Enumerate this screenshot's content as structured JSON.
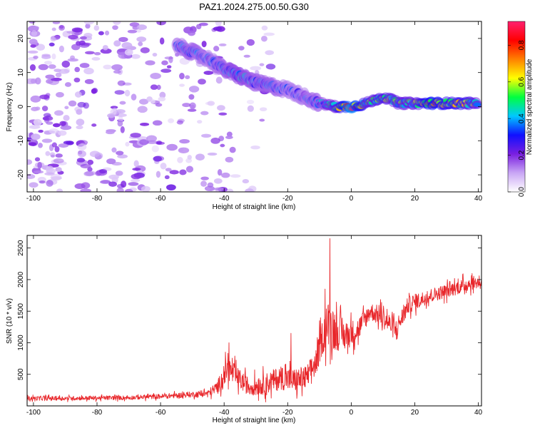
{
  "title": "PAZ1.2024.275.00.50.G30",
  "chart_data": [
    {
      "type": "heatmap",
      "xlabel": "Height of straight line (km)",
      "ylabel": "Frequency (Hz)",
      "xlim": [
        -102,
        41
      ],
      "ylim": [
        -25,
        25
      ],
      "x_ticks": [
        -100,
        -80,
        -60,
        -40,
        -20,
        0,
        20,
        40
      ],
      "y_ticks": [
        -20,
        -10,
        0,
        10,
        20
      ],
      "colorbar": {
        "label": "Normalized spectral amplitude",
        "range": [
          0,
          0.93
        ],
        "ticks": [
          0.0,
          0.2,
          0.4,
          0.6,
          0.8
        ],
        "colors": [
          "#ffffff",
          "#c9a6f5",
          "#7a1fe0",
          "#1010ff",
          "#00c8ff",
          "#00ff40",
          "#ffff00",
          "#ff8000",
          "#ff0000",
          "#ff2070"
        ]
      },
      "signal_trace": [
        {
          "x": -55,
          "y": 18,
          "amp": 0.3
        },
        {
          "x": -50,
          "y": 16,
          "amp": 0.35
        },
        {
          "x": -45,
          "y": 14,
          "amp": 0.3
        },
        {
          "x": -40,
          "y": 11,
          "amp": 0.35
        },
        {
          "x": -35,
          "y": 9,
          "amp": 0.4
        },
        {
          "x": -30,
          "y": 7,
          "amp": 0.35
        },
        {
          "x": -25,
          "y": 6,
          "amp": 0.35
        },
        {
          "x": -20,
          "y": 5,
          "amp": 0.3
        },
        {
          "x": -15,
          "y": 3,
          "amp": 0.3
        },
        {
          "x": -10,
          "y": 1,
          "amp": 0.35
        },
        {
          "x": -5,
          "y": 0,
          "amp": 0.5
        },
        {
          "x": 0,
          "y": 0,
          "amp": 0.85
        },
        {
          "x": 5,
          "y": 1,
          "amp": 0.5
        },
        {
          "x": 10,
          "y": 3,
          "amp": 0.55
        },
        {
          "x": 15,
          "y": 1,
          "amp": 0.5
        },
        {
          "x": 20,
          "y": 1,
          "amp": 0.5
        },
        {
          "x": 25,
          "y": 1,
          "amp": 0.7
        },
        {
          "x": 30,
          "y": 1,
          "amp": 0.6
        },
        {
          "x": 35,
          "y": 1,
          "amp": 0.6
        },
        {
          "x": 40,
          "y": 1,
          "amp": 0.5
        }
      ],
      "background_noise": {
        "x_range": [
          -102,
          -25
        ],
        "y_range": [
          -25,
          25
        ],
        "amp": 0.15
      }
    },
    {
      "type": "line",
      "xlabel": "Height of straight line (km)",
      "ylabel": "SNR (10 * v/v)",
      "xlim": [
        -102,
        41
      ],
      "ylim": [
        0,
        2700
      ],
      "x_ticks": [
        -100,
        -80,
        -60,
        -40,
        -20,
        0,
        20,
        40
      ],
      "y_ticks": [
        500,
        1000,
        1500,
        2000,
        2500
      ],
      "series": [
        {
          "color": "#e8262a",
          "envelope": [
            {
              "x": -102,
              "mean": 120,
              "spread": 60
            },
            {
              "x": -90,
              "mean": 120,
              "spread": 60
            },
            {
              "x": -80,
              "mean": 125,
              "spread": 60
            },
            {
              "x": -70,
              "mean": 130,
              "spread": 60
            },
            {
              "x": -60,
              "mean": 150,
              "spread": 70
            },
            {
              "x": -50,
              "mean": 180,
              "spread": 80
            },
            {
              "x": -45,
              "mean": 200,
              "spread": 100
            },
            {
              "x": -42,
              "mean": 300,
              "spread": 200
            },
            {
              "x": -39,
              "mean": 600,
              "spread": 350
            },
            {
              "x": -36,
              "mean": 450,
              "spread": 300
            },
            {
              "x": -32,
              "mean": 300,
              "spread": 250
            },
            {
              "x": -27,
              "mean": 350,
              "spread": 300
            },
            {
              "x": -22,
              "mean": 450,
              "spread": 350
            },
            {
              "x": -18,
              "mean": 400,
              "spread": 350
            },
            {
              "x": -14,
              "mean": 450,
              "spread": 350
            },
            {
              "x": -11,
              "mean": 700,
              "spread": 400
            },
            {
              "x": -9,
              "mean": 1100,
              "spread": 500
            },
            {
              "x": -7,
              "mean": 1300,
              "spread": 700
            },
            {
              "x": -5,
              "mean": 1200,
              "spread": 600
            },
            {
              "x": -2,
              "mean": 1100,
              "spread": 400
            },
            {
              "x": 2,
              "mean": 1200,
              "spread": 350
            },
            {
              "x": 6,
              "mean": 1500,
              "spread": 250
            },
            {
              "x": 10,
              "mean": 1400,
              "spread": 300
            },
            {
              "x": 14,
              "mean": 1200,
              "spread": 300
            },
            {
              "x": 18,
              "mean": 1600,
              "spread": 250
            },
            {
              "x": 25,
              "mean": 1750,
              "spread": 200
            },
            {
              "x": 32,
              "mean": 1850,
              "spread": 200
            },
            {
              "x": 38,
              "mean": 1950,
              "spread": 200
            },
            {
              "x": 41,
              "mean": 1950,
              "spread": 150
            }
          ],
          "peaks": [
            {
              "x": -6.7,
              "y": 2650
            },
            {
              "x": -38.5,
              "y": 1000
            },
            {
              "x": -19,
              "y": 1150
            },
            {
              "x": -8.2,
              "y": 1850
            }
          ]
        }
      ]
    }
  ]
}
